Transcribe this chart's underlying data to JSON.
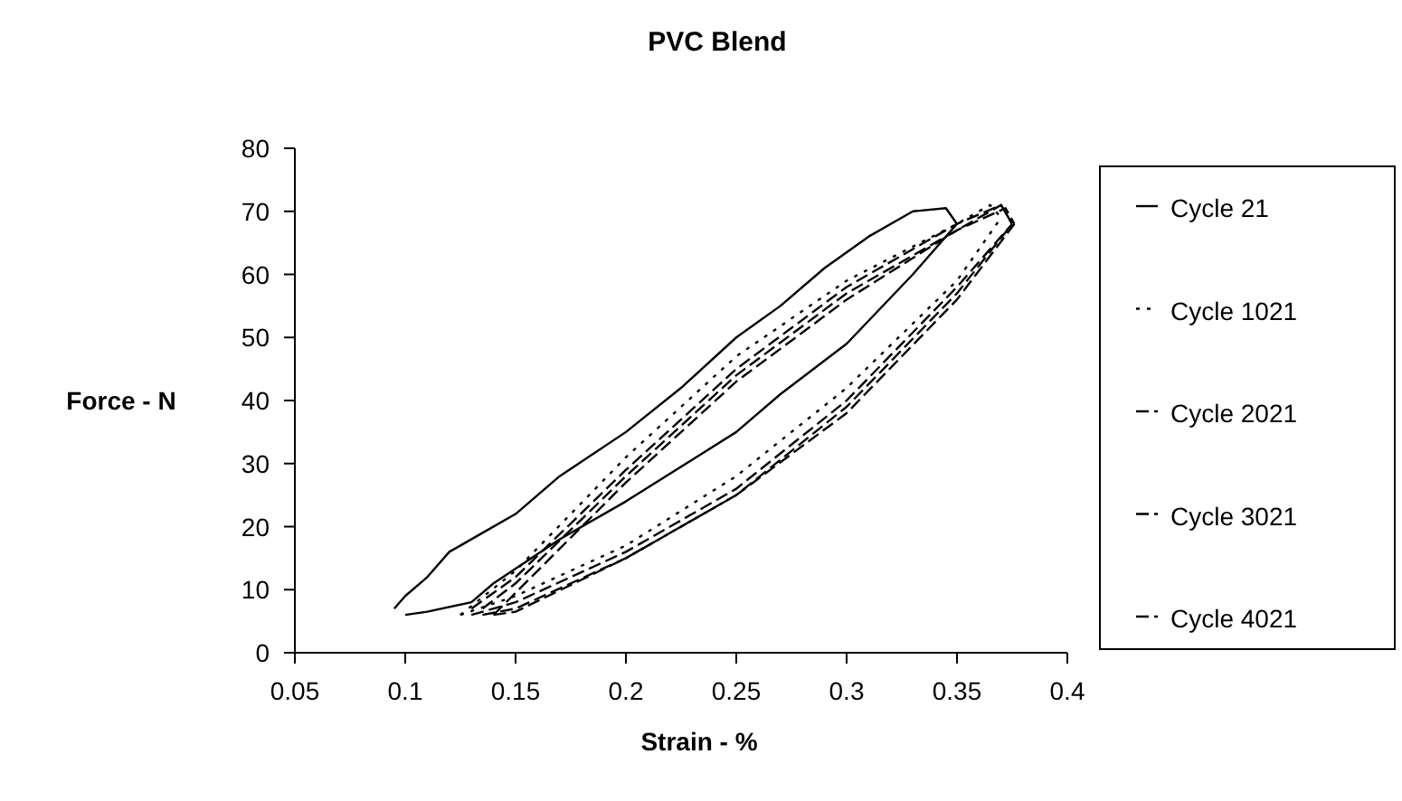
{
  "chart_data": {
    "type": "line",
    "title": "PVC Blend",
    "xlabel": "Strain - %",
    "ylabel": "Force - N",
    "xlim": [
      0.05,
      0.4
    ],
    "xticks": [
      0.05,
      0.1,
      0.15,
      0.2,
      0.25,
      0.3,
      0.35,
      0.4
    ],
    "ylim": [
      0,
      80
    ],
    "yticks": [
      0,
      10,
      20,
      30,
      40,
      50,
      60,
      70,
      80
    ],
    "legend": "right",
    "marker": "none",
    "grid": false,
    "series": [
      {
        "name": "Cycle 21",
        "color": "#000000",
        "line_style": "solid",
        "x": [
          0.095,
          0.1,
          0.11,
          0.12,
          0.15,
          0.17,
          0.2,
          0.225,
          0.25,
          0.27,
          0.29,
          0.31,
          0.33,
          0.345,
          0.35
        ],
        "values": [
          7,
          9,
          12,
          16,
          22,
          28,
          35,
          42,
          50,
          55,
          61,
          66,
          70,
          70.5,
          68
        ]
      },
      {
        "color": "#000000",
        "line_style": "solid",
        "x": [
          0.1,
          0.11,
          0.13,
          0.14,
          0.17,
          0.2,
          0.25,
          0.27,
          0.3,
          0.33,
          0.35
        ],
        "values": [
          6,
          6.5,
          8,
          11,
          18,
          24,
          35,
          41,
          49,
          60,
          68
        ]
      },
      {
        "name": "Cycle 1021",
        "color": "#000000",
        "line_style": "dotted",
        "x": [
          0.125,
          0.15,
          0.2,
          0.25,
          0.3,
          0.35,
          0.365,
          0.37
        ],
        "values": [
          6,
          13,
          31,
          47,
          59,
          68,
          71,
          69
        ]
      },
      {
        "color": "#000000",
        "line_style": "dotted",
        "x": [
          0.125,
          0.15,
          0.2,
          0.25,
          0.3,
          0.35,
          0.37
        ],
        "values": [
          6,
          9,
          17,
          28,
          42,
          59,
          69
        ]
      },
      {
        "name": "Cycle 2021",
        "color": "#000000",
        "line_style": "dashed",
        "x": [
          0.13,
          0.15,
          0.2,
          0.25,
          0.3,
          0.35,
          0.37,
          0.375
        ],
        "values": [
          7,
          12,
          29,
          45,
          58,
          68,
          71,
          68
        ]
      },
      {
        "color": "#000000",
        "line_style": "dashed",
        "x": [
          0.13,
          0.15,
          0.2,
          0.25,
          0.3,
          0.35,
          0.375
        ],
        "values": [
          6,
          8,
          16,
          26,
          40,
          58,
          68
        ]
      },
      {
        "name": "Cycle 3021",
        "color": "#000000",
        "line_style": "dashed",
        "x": [
          0.135,
          0.15,
          0.2,
          0.25,
          0.3,
          0.35,
          0.37,
          0.375
        ],
        "values": [
          7,
          11,
          28,
          44,
          57,
          67,
          71,
          68
        ]
      },
      {
        "color": "#000000",
        "line_style": "dashed",
        "x": [
          0.135,
          0.15,
          0.2,
          0.25,
          0.3,
          0.35,
          0.375
        ],
        "values": [
          6,
          7,
          15,
          25,
          39,
          57,
          68
        ]
      },
      {
        "name": "Cycle 4021",
        "color": "#000000",
        "line_style": "dashed",
        "x": [
          0.14,
          0.16,
          0.2,
          0.25,
          0.3,
          0.35,
          0.372,
          0.376
        ],
        "values": [
          6,
          13,
          27,
          43,
          56,
          67,
          70.5,
          68
        ]
      },
      {
        "color": "#000000",
        "line_style": "dashed",
        "x": [
          0.14,
          0.15,
          0.2,
          0.25,
          0.3,
          0.35,
          0.376
        ],
        "values": [
          6,
          6.5,
          15,
          25,
          38,
          56,
          68
        ]
      }
    ]
  }
}
